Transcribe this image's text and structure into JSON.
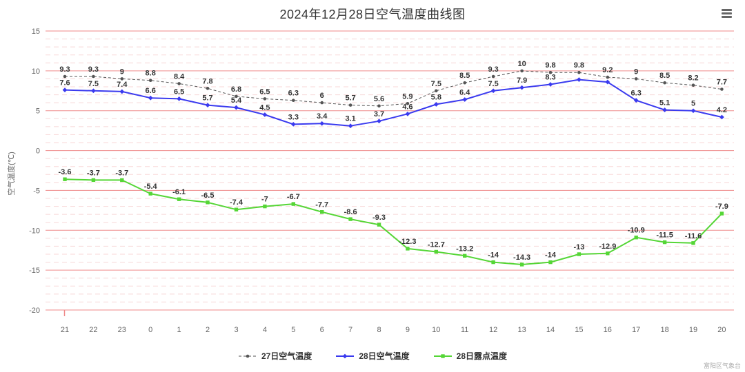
{
  "chart_data": {
    "type": "line",
    "title": "2024年12月28日空气温度曲线图",
    "xlabel": "",
    "ylabel": "空气温度(℃)",
    "ylim": [
      -20,
      15
    ],
    "y_ticks": [
      15,
      10,
      5,
      0,
      -5,
      -10,
      -15,
      -20
    ],
    "y_tick_interval": 5,
    "y_minor_tick_interval": 1,
    "grid": {
      "major_color": "#ef8a8a",
      "minor_color": "#f8d7d7"
    },
    "legend_position": "bottom",
    "categories": [
      "21",
      "22",
      "23",
      "0",
      "1",
      "2",
      "3",
      "4",
      "5",
      "6",
      "7",
      "8",
      "9",
      "10",
      "11",
      "12",
      "13",
      "14",
      "15",
      "16",
      "17",
      "18",
      "19",
      "20"
    ],
    "series": [
      {
        "name": "27日空气温度",
        "color": "#555555",
        "dash": "4 3",
        "line_width": 1,
        "marker": "circle",
        "values": [
          9.3,
          9.3,
          9,
          8.8,
          8.4,
          7.8,
          6.8,
          6.5,
          6.3,
          6,
          5.7,
          5.6,
          5.9,
          7.5,
          8.5,
          9.3,
          10,
          9.8,
          9.8,
          9.2,
          9,
          8.5,
          8.2,
          7.7
        ],
        "labels": [
          "9.3",
          "9.3",
          "9",
          "8.8",
          "8.4",
          "7.8",
          "6.8",
          "6.5",
          "6.3",
          "6",
          "5.7",
          "5.6",
          "5.9",
          "7.5",
          "8.5",
          "9.3",
          "10",
          "9.8",
          "9.8",
          "9.2",
          "9",
          "8.5",
          "8.2",
          "7.7"
        ]
      },
      {
        "name": "28日空气温度",
        "color": "#3a3aef",
        "dash": "",
        "line_width": 2,
        "marker": "diamond",
        "values": [
          7.6,
          7.5,
          7.4,
          6.6,
          6.5,
          5.7,
          5.4,
          4.5,
          3.3,
          3.4,
          3.1,
          3.7,
          4.6,
          5.8,
          6.4,
          7.5,
          7.9,
          8.3,
          8.9,
          8.6,
          6.3,
          5.1,
          5,
          4.2
        ],
        "labels": [
          "7.6",
          "7.5",
          "7.4",
          "6.6",
          "6.5",
          "5.7",
          "5.4",
          "4.5",
          "3.3",
          "3.4",
          "3.1",
          "3.7",
          "4.6",
          "5.8",
          "6.4",
          "7.5",
          "7.9",
          "8.3",
          "",
          "",
          "6.3",
          "5.1",
          "5",
          "4.2"
        ]
      },
      {
        "name": "28日露点温度",
        "color": "#55d636",
        "dash": "",
        "line_width": 2,
        "marker": "square",
        "values": [
          -3.6,
          -3.7,
          -3.7,
          -5.4,
          -6.1,
          -6.5,
          -7.4,
          -7,
          -6.7,
          -7.7,
          -8.6,
          -9.3,
          -12.3,
          -12.7,
          -13.2,
          -14,
          -14.3,
          -14,
          -13,
          -12.9,
          -10.9,
          -11.5,
          -11.6,
          -7.9
        ],
        "labels": [
          "-3.6",
          "-3.7",
          "-3.7",
          "-5.4",
          "-6.1",
          "-6.5",
          "-7.4",
          "-7",
          "-6.7",
          "-7.7",
          "-8.6",
          "-9.3",
          "-12.3",
          "-12.7",
          "-13.2",
          "-14",
          "-14.3",
          "-14",
          "-13",
          "-12.9",
          "-10.9",
          "-11.5",
          "-11.6",
          "-7.9"
        ]
      }
    ],
    "credit": "富阳区气象台"
  }
}
